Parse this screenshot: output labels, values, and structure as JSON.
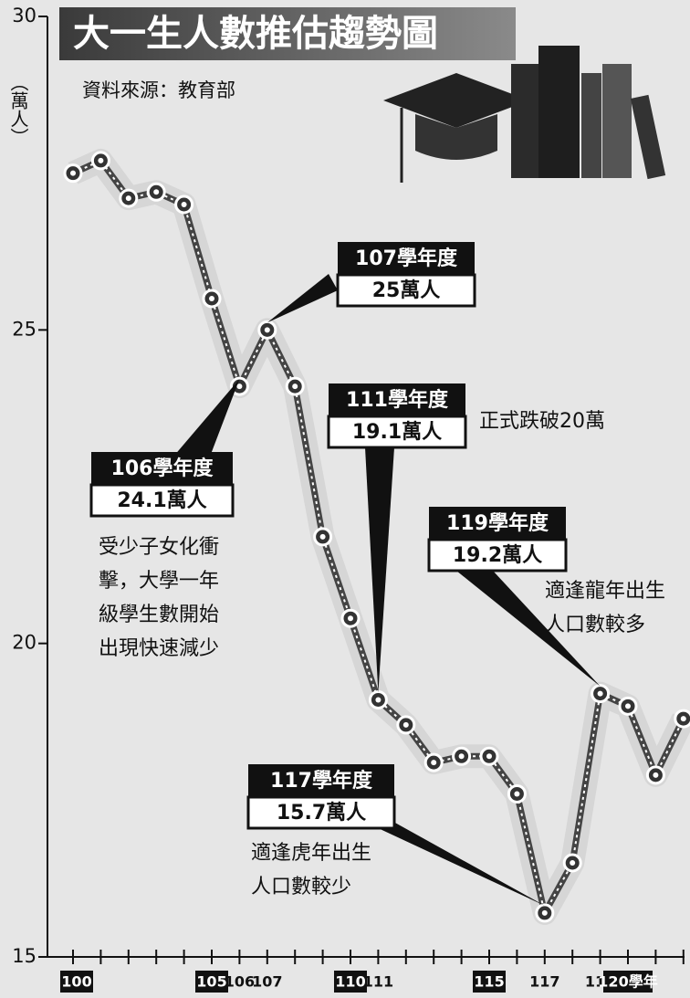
{
  "chart_data": {
    "type": "line",
    "title": "大一生人數推估趨勢圖",
    "source": "資料來源：教育部",
    "y_axis_label": "（萬人）",
    "categories": [
      "100",
      null,
      null,
      null,
      null,
      "105",
      "106",
      "107",
      null,
      null,
      "110",
      "111",
      null,
      null,
      null,
      "115",
      null,
      "117",
      null,
      "119",
      "120學年",
      null,
      null
    ],
    "boxed_categories": [
      "100",
      "105",
      "110",
      "115",
      "120學年"
    ],
    "series": [
      {
        "name": "大一生人數",
        "color": "#444444",
        "values": [
          27.5,
          27.7,
          27.1,
          27.2,
          27.0,
          25.5,
          24.1,
          25,
          24.1,
          21.7,
          20.4,
          19.1,
          18.7,
          18.1,
          18.2,
          18.2,
          17.6,
          15.7,
          16.5,
          19.2,
          19.0,
          17.9,
          18.8
        ]
      }
    ],
    "ylim": [
      15,
      30
    ],
    "yticks": [
      15,
      20,
      25,
      30
    ],
    "annotations": [
      {
        "year_label": "107學年度",
        "value_label": "25萬人",
        "note": []
      },
      {
        "year_label": "111學年度",
        "value_label": "19.1萬人",
        "note": [
          "正式跌破20萬"
        ]
      },
      {
        "year_label": "106學年度",
        "value_label": "24.1萬人",
        "note": [
          "受少子女化衝",
          "擊，大學一年",
          "級學生數開始",
          "出現快速減少"
        ]
      },
      {
        "year_label": "119學年度",
        "value_label": "19.2萬人",
        "note": [
          "適逢龍年出生",
          "人口數較多"
        ]
      },
      {
        "year_label": "117學年度",
        "value_label": "15.7萬人",
        "note": [
          "適逢虎年出生",
          "人口數較少"
        ]
      }
    ]
  }
}
